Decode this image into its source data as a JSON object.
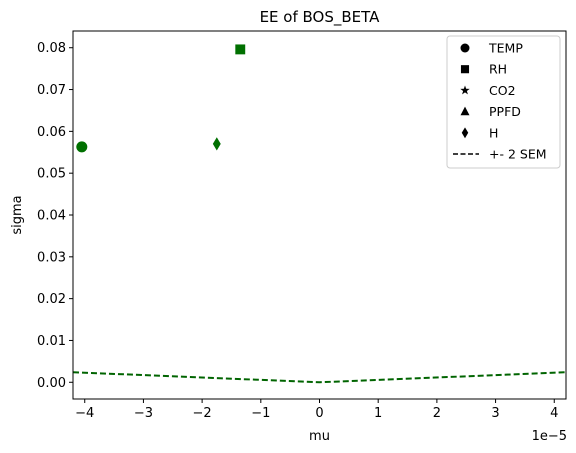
{
  "chart_data": {
    "type": "scatter",
    "title": "EE of BOS_BETA",
    "xlabel": "mu",
    "ylabel": "sigma",
    "x_offset_label": "1e−5",
    "xlim": [
      -4.2e-05,
      4.2e-05
    ],
    "ylim": [
      -0.004,
      0.084
    ],
    "xticks": [
      -4e-05,
      -3e-05,
      -2e-05,
      -1e-05,
      0,
      1e-05,
      2e-05,
      3e-05,
      4e-05
    ],
    "xtick_labels": [
      "−4",
      "−3",
      "−2",
      "−1",
      "0",
      "1",
      "2",
      "3",
      "4"
    ],
    "yticks": [
      0,
      0.01,
      0.02,
      0.03,
      0.04,
      0.05,
      0.06,
      0.07,
      0.08
    ],
    "ytick_labels": [
      "0.00",
      "0.01",
      "0.02",
      "0.03",
      "0.04",
      "0.05",
      "0.06",
      "0.07",
      "0.08"
    ],
    "grid": false,
    "legend_position": "top-right",
    "point_color": "#007000",
    "series": [
      {
        "name": "TEMP",
        "marker": "circle",
        "points": [
          [
            -4.05e-05,
            0.0563
          ]
        ]
      },
      {
        "name": "RH",
        "marker": "square",
        "points": [
          [
            -1.35e-05,
            0.0796
          ]
        ]
      },
      {
        "name": "CO2",
        "marker": "star",
        "points": []
      },
      {
        "name": "PPFD",
        "marker": "triangle",
        "points": []
      },
      {
        "name": "H",
        "marker": "diamond",
        "points": [
          [
            -1.75e-05,
            0.057
          ]
        ]
      }
    ],
    "sem_line": {
      "name": "+- 2 SEM",
      "style": "dashed",
      "color": "#006400",
      "points": [
        [
          -4.2e-05,
          0.0024
        ],
        [
          0,
          0.0
        ],
        [
          4.2e-05,
          0.0024
        ]
      ]
    }
  }
}
